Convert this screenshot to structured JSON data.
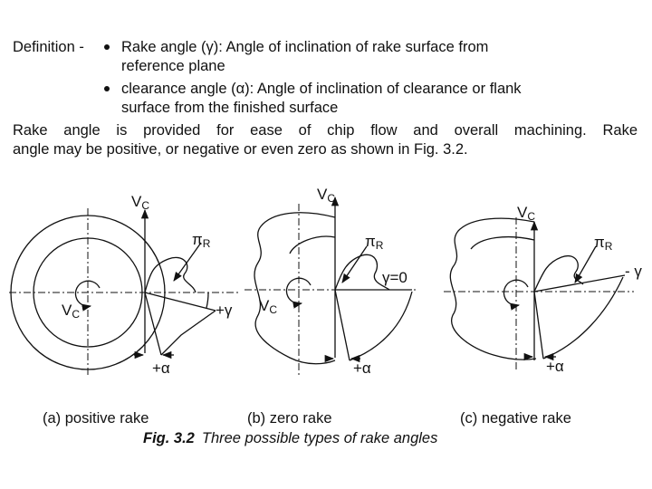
{
  "definition": {
    "label": "Definition -",
    "items": [
      {
        "lines": [
          "Rake angle (γ): Angle of inclination of rake surface from",
          "reference plane"
        ]
      },
      {
        "lines": [
          "clearance angle (α): Angle of inclination of clearance or flank",
          "surface from the finished surface"
        ]
      }
    ]
  },
  "paragraph": {
    "lines": [
      "Rake angle is provided for ease of chip flow and overall machining. Rake",
      "angle may be positive, or negative or even zero as shown in Fig. 3.2."
    ]
  },
  "figure": {
    "panels": [
      {
        "velocity_top": "V",
        "velocity_top_sub": "C",
        "plane": "π",
        "plane_sub": "R",
        "rake": "+γ",
        "clearance": "+α",
        "velocity_inner": "V",
        "velocity_inner_sub": "C",
        "caption": "(a) positive rake"
      },
      {
        "velocity_top": "V",
        "velocity_top_sub": "C",
        "plane": "π",
        "plane_sub": "R",
        "rake": "γ=0",
        "clearance": "+α",
        "velocity_inner": "V",
        "velocity_inner_sub": "C",
        "caption": "(b) zero rake"
      },
      {
        "velocity_top": "V",
        "velocity_top_sub": "C",
        "plane": "π",
        "plane_sub": "R",
        "rake": "- γ",
        "clearance": "+α",
        "caption": "(c) negative rake"
      }
    ],
    "number": "Fig. 3.2",
    "title": "Three possible types of rake angles"
  }
}
